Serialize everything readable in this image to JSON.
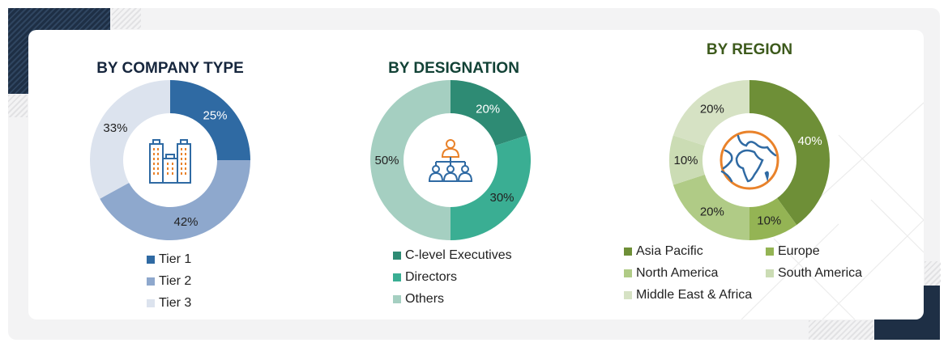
{
  "panels": [
    {
      "title": "BY COMPANY TYPE",
      "title_color": "#16263d",
      "icon": "buildings-icon"
    },
    {
      "title": "BY DESIGNATION",
      "title_color": "#124236",
      "icon": "org-hierarchy-icon"
    },
    {
      "title": "BY REGION",
      "title_color": "#3d5a1c",
      "icon": "globe-icon"
    }
  ],
  "chart_data": [
    {
      "type": "pie",
      "title": "BY COMPANY TYPE",
      "categories": [
        "Tier 1",
        "Tier 2",
        "Tier 3"
      ],
      "values": [
        25,
        42,
        33
      ],
      "labels": [
        "25%",
        "42%",
        "33%"
      ],
      "colors": [
        "#2f6aa3",
        "#8ea8cd",
        "#dce3ee"
      ],
      "label_colors": [
        "#ffffff",
        "#222222",
        "#222222"
      ],
      "donut": true,
      "legend_position": "bottom"
    },
    {
      "type": "pie",
      "title": "BY DESIGNATION",
      "categories": [
        "C-level Executives",
        "Directors",
        "Others"
      ],
      "values": [
        20,
        30,
        50
      ],
      "labels": [
        "20%",
        "30%",
        "50%"
      ],
      "colors": [
        "#2e8b74",
        "#3aae93",
        "#a5cfc1"
      ],
      "label_colors": [
        "#ffffff",
        "#222222",
        "#222222"
      ],
      "donut": true,
      "legend_position": "bottom"
    },
    {
      "type": "pie",
      "title": "BY REGION",
      "categories": [
        "Asia Pacific",
        "Europe",
        "North America",
        "South America",
        "Middle East & Africa"
      ],
      "values": [
        40,
        10,
        20,
        10,
        20
      ],
      "labels": [
        "40%",
        "10%",
        "20%",
        "10%",
        "20%"
      ],
      "colors": [
        "#6e8f37",
        "#94b454",
        "#b0cb86",
        "#cbdcb4",
        "#d6e2c4"
      ],
      "label_colors": [
        "#ffffff",
        "#222222",
        "#222222",
        "#222222",
        "#222222"
      ],
      "donut": true,
      "legend_position": "bottom"
    }
  ]
}
